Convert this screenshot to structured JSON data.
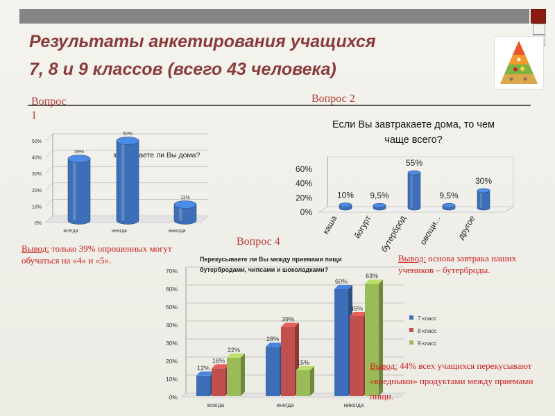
{
  "title": {
    "line1": "Результаты анкетирования  учащихся",
    "line2": "7, 8 и 9 классов (всего 43 человека)"
  },
  "labels": {
    "q1_line1": "Вопрос",
    "q1_line2": "1",
    "q2": "Вопрос 2",
    "q4": "Вопрос 4"
  },
  "conclusions": {
    "c1": {
      "lead": "Вывод:",
      "text": " только 39% опрошенных могут обучаться на «4» и «5»."
    },
    "c2": {
      "lead": "Вывод:",
      "text": " основа завтрака наших учеников – бутерброды."
    },
    "c4": {
      "lead": "Вывод:",
      "text": " 44% всех учащихся перекусывают «вредными» продуктами между приемами пищи."
    }
  },
  "colors": {
    "title": "#8b3a3a",
    "conclusion": "#cc1e1e",
    "bar_blue": "#3d6fb8",
    "bar_red": "#c0504d",
    "bar_green": "#9bbb59"
  },
  "icons": {
    "logo": "food-pyramid-icon"
  },
  "chart_data": [
    {
      "type": "bar",
      "title": "завтракаете ли Вы дома?",
      "categories": [
        "всегда",
        "иногда",
        "никогда"
      ],
      "values": [
        39,
        50,
        11
      ],
      "data_labels": [
        "39%",
        "50%",
        "11%"
      ],
      "ylim": [
        0,
        50
      ],
      "yticks": [
        "0%",
        "10%",
        "20%",
        "30%",
        "40%",
        "50%"
      ],
      "grid": true,
      "legend": "none"
    },
    {
      "type": "bar",
      "title": "Если Вы завтракаете дома, то чем чаще всего?",
      "categories": [
        "каша",
        "йогурт",
        "бутерброд",
        "овощи...",
        "другое"
      ],
      "values": [
        10,
        9.5,
        55,
        9.5,
        30
      ],
      "data_labels": [
        "10%",
        "9,5%",
        "55%",
        "9,5%",
        "30%"
      ],
      "ylim": [
        0,
        60
      ],
      "yticks": [
        "0%",
        "20%",
        "40%",
        "60%"
      ],
      "grid": false,
      "legend": "none"
    },
    {
      "type": "bar",
      "title": "Перекусываете  ли Вы между приемами пищи бутербродами, чипсами и шоколадками?",
      "categories": [
        "всегда",
        "иногда",
        "никогда"
      ],
      "series": [
        {
          "name": "7 класс",
          "values": [
            12,
            28,
            60
          ],
          "data_labels": [
            "12%",
            "28%",
            "60%"
          ]
        },
        {
          "name": "8 класс",
          "values": [
            16,
            39,
            45
          ],
          "data_labels": [
            "16%",
            "39%",
            "45%"
          ]
        },
        {
          "name": "9 класс",
          "values": [
            22,
            15,
            63
          ],
          "data_labels": [
            "22%",
            "15%",
            "63%"
          ]
        }
      ],
      "ylim": [
        0,
        70
      ],
      "yticks": [
        "0%",
        "10%",
        "20%",
        "30%",
        "40%",
        "50%",
        "60%",
        "70%"
      ],
      "grid": true,
      "legend": "right"
    }
  ]
}
